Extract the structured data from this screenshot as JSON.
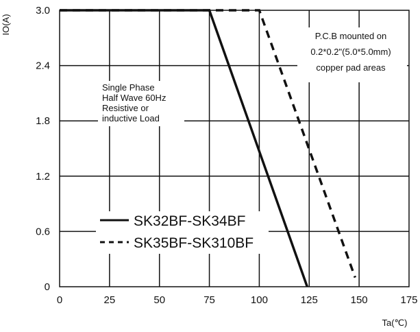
{
  "chart_data": {
    "type": "line",
    "ylabel": "IO(A)",
    "xlabel": "Ta(℃)",
    "xlim": [
      0,
      175
    ],
    "ylim": [
      0,
      3.0
    ],
    "x_ticks": [
      0,
      25,
      50,
      75,
      100,
      125,
      150,
      175
    ],
    "x_tick_labels": [
      "0",
      "25",
      "50",
      "75",
      "100",
      "125",
      "150",
      "175"
    ],
    "y_ticks": [
      0,
      0.6,
      1.2,
      1.8,
      2.4,
      3.0
    ],
    "y_tick_labels": [
      "0",
      "0.6",
      "1.2",
      "1.8",
      "2.4",
      "3.0"
    ],
    "grid": true,
    "series": [
      {
        "name": "SK32BF-SK34BF",
        "style": "solid",
        "x": [
          0,
          75,
          124
        ],
        "y": [
          3.0,
          3.0,
          0
        ]
      },
      {
        "name": "SK35BF-SK310BF",
        "style": "dashed",
        "x": [
          0,
          100,
          148
        ],
        "y": [
          3.0,
          3.0,
          0.1
        ]
      }
    ],
    "annotations": {
      "conditions": [
        "Single Phase",
        "Half Wave 60Hz",
        "Resistive or",
        "inductive Load"
      ],
      "pcb_note": [
        "P.C.B mounted on",
        "0.2*0.2\"(5.0*5.0mm)",
        "copper pad areas"
      ]
    },
    "legend_position": "bottom-left",
    "colors": {
      "line": "#111111",
      "grid": "#111111",
      "background": "#ffffff"
    }
  }
}
